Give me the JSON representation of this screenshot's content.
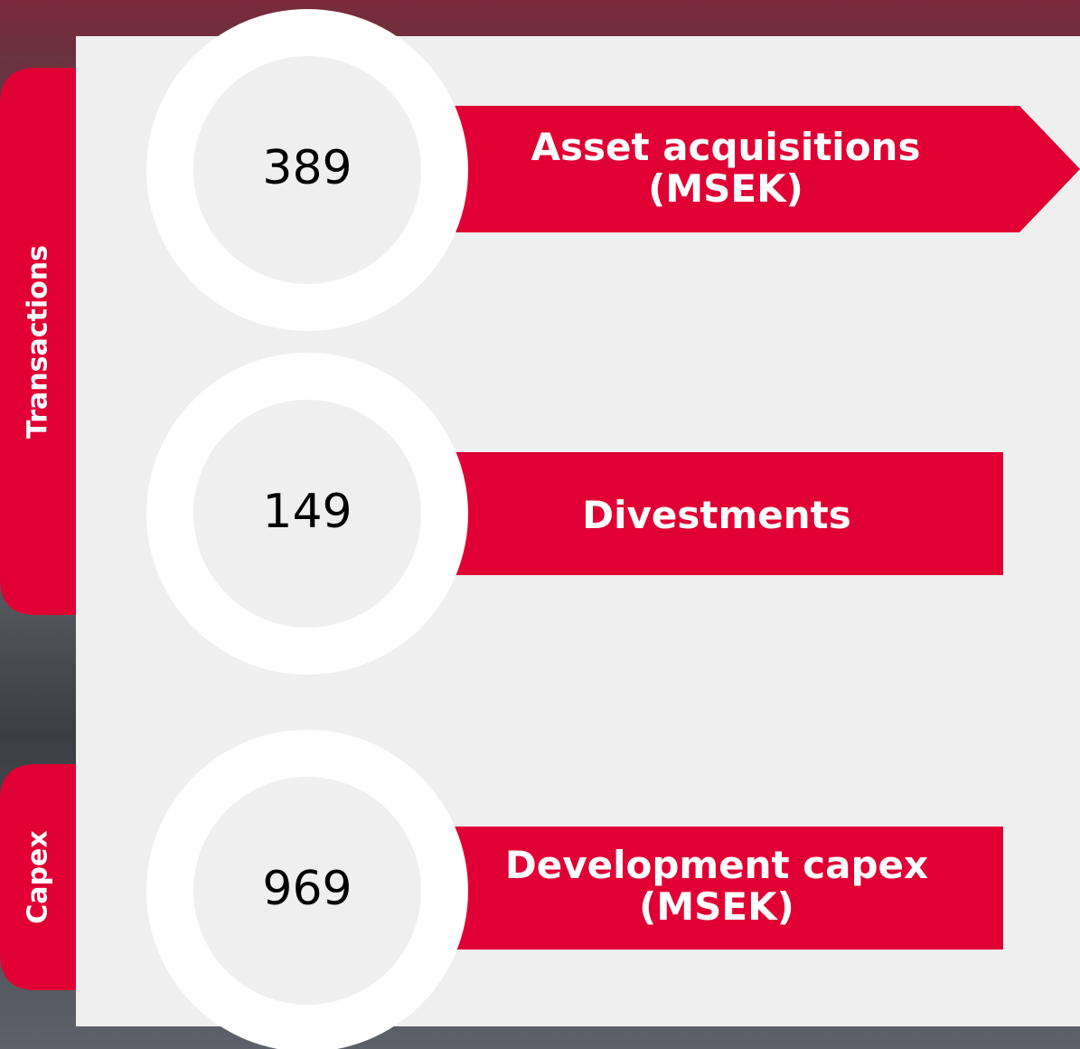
{
  "sections": [
    {
      "label": "Transactions"
    },
    {
      "label": "Capex"
    }
  ],
  "items": [
    {
      "value": 389,
      "label": "Asset acquisitions (MSEK)"
    },
    {
      "value": 149,
      "label": "Divestments"
    },
    {
      "value": 969,
      "label": "Development capex (MSEK)"
    }
  ]
}
